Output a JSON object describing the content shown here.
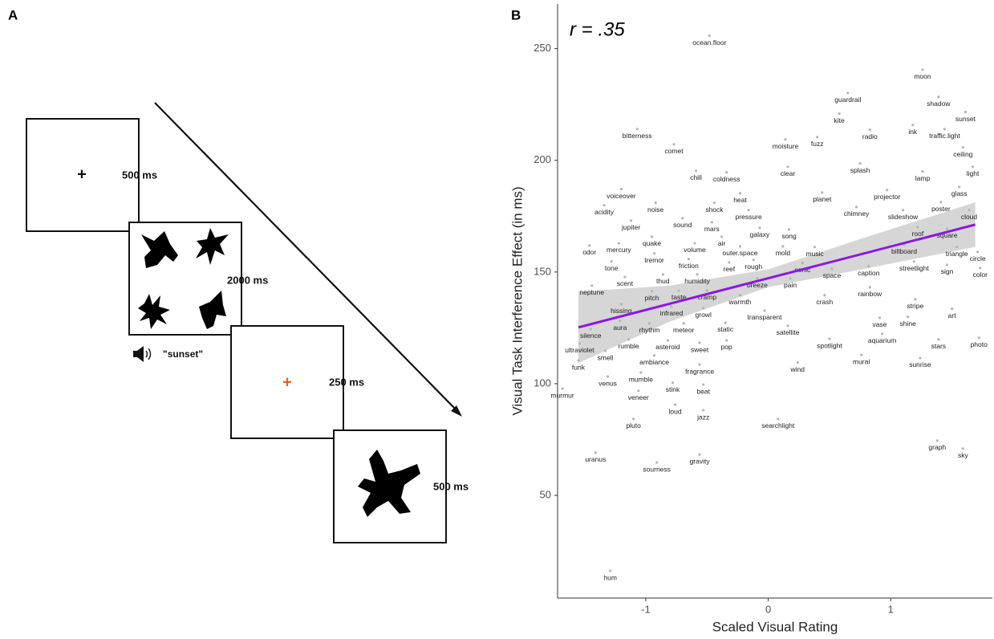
{
  "panel_a": {
    "label": "A",
    "frames": [
      {
        "fixation": "+",
        "duration": "500 ms"
      },
      {
        "duration": "2000 ms",
        "audio": "\"sunset\""
      },
      {
        "fixation": "+",
        "duration": "250 ms"
      },
      {
        "duration": "500 ms"
      }
    ]
  },
  "chart_data": {
    "type": "scatter",
    "label": "B",
    "annotation": "r = .35",
    "x_label": "Scaled Visual Rating",
    "y_label": "Visual Task Interference Effect (in ms)",
    "xlim": [
      -1.72,
      1.83
    ],
    "ylim": [
      4,
      270
    ],
    "xticks": [
      -1,
      0,
      1
    ],
    "yticks": [
      50,
      100,
      150,
      200,
      250
    ],
    "point_color": "#b5b5b5",
    "fit_color": "#8a18e0",
    "ci_color": "#cfcfcf",
    "point_labels": [
      "ocean.floor",
      "moon",
      "guardrail",
      "shadow",
      "kite",
      "sunset",
      "bitterness",
      "fuzz",
      "radio",
      "ink",
      "traffic.light",
      "moisture",
      "ceiling",
      "comet",
      "splash",
      "clear",
      "chill",
      "coldness",
      "lamp",
      "light",
      "glass",
      "voiceover",
      "planet",
      "projector",
      "heat",
      "acidity",
      "noise",
      "shock",
      "chimney",
      "poster",
      "slideshow",
      "cloud",
      "pressure",
      "jupiter",
      "sound",
      "mars",
      "roof",
      "square",
      "galaxy",
      "song",
      "quake",
      "air",
      "billboard",
      "circle",
      "odor",
      "mercury",
      "volume",
      "outer.space",
      "mold",
      "music",
      "triangle",
      "tremor",
      "tone",
      "friction",
      "rough",
      "streetlight",
      "reef",
      "sonic",
      "caption",
      "sign",
      "color",
      "space",
      "scent",
      "thud",
      "humidity",
      "breeze",
      "pain",
      "neptune",
      "rainbow",
      "pitch",
      "taste",
      "cramp",
      "warmth",
      "crash",
      "infrared",
      "stripe",
      "hissing",
      "growl",
      "transparent",
      "art",
      "vase",
      "shine",
      "aura",
      "rhythm",
      "meteor",
      "static",
      "satellite",
      "silence",
      "aquarium",
      "photo",
      "rumble",
      "asteroid",
      "sweet",
      "pop",
      "spotlight",
      "stars",
      "ultraviolet",
      "smell",
      "ambiance",
      "mural",
      "sunrise",
      "funk",
      "wind",
      "fragrance",
      "venus",
      "mumble",
      "stink",
      "beat",
      "murmur",
      "veneer",
      "loud",
      "jazz",
      "searchlight",
      "pluto",
      "graph",
      "sky",
      "uranus",
      "gravity",
      "sourness",
      "hum"
    ],
    "x": [
      -0.48,
      1.26,
      0.65,
      1.39,
      0.58,
      1.61,
      -1.07,
      0.4,
      0.83,
      1.18,
      1.44,
      0.14,
      1.59,
      -0.77,
      0.75,
      0.16,
      -0.59,
      -0.34,
      1.26,
      1.67,
      1.56,
      -1.2,
      0.44,
      0.97,
      -0.23,
      -1.34,
      -0.92,
      -0.44,
      0.72,
      1.41,
      1.1,
      1.64,
      -0.16,
      -1.12,
      -0.7,
      -0.46,
      1.22,
      1.46,
      -0.07,
      0.17,
      -0.95,
      -0.38,
      1.11,
      1.71,
      -1.46,
      -1.22,
      -0.6,
      -0.23,
      0.12,
      0.38,
      1.54,
      -0.93,
      -1.28,
      -0.65,
      -0.12,
      1.19,
      -0.32,
      0.28,
      0.82,
      1.46,
      1.73,
      0.52,
      -1.17,
      -0.86,
      -0.58,
      -0.09,
      0.18,
      -1.44,
      0.83,
      -0.95,
      -0.73,
      -0.5,
      -0.23,
      0.46,
      -0.79,
      1.2,
      -1.2,
      -0.53,
      -0.03,
      1.5,
      0.91,
      1.14,
      -1.21,
      -0.97,
      -0.69,
      -0.35,
      0.16,
      -1.45,
      0.93,
      1.72,
      -1.14,
      -0.82,
      -0.56,
      -0.34,
      0.5,
      1.39,
      -1.54,
      -1.33,
      -0.93,
      0.76,
      1.24,
      -1.55,
      0.24,
      -0.56,
      -1.31,
      -1.04,
      -0.78,
      -0.53,
      -1.68,
      -1.06,
      -0.76,
      -0.53,
      0.08,
      -1.1,
      1.38,
      1.59,
      -1.41,
      -0.56,
      -0.91,
      -1.29
    ],
    "values": [
      255.8,
      240.6,
      230.2,
      228.4,
      220.9,
      221.6,
      214.0,
      210.4,
      213.7,
      215.8,
      214.0,
      209.4,
      205.8,
      207.2,
      198.6,
      197.1,
      195.3,
      194.6,
      195.0,
      197.1,
      188.1,
      187.1,
      185.6,
      186.7,
      185.3,
      179.9,
      181.0,
      181.0,
      179.1,
      181.3,
      177.7,
      177.7,
      177.7,
      173.0,
      174.1,
      172.3,
      170.1,
      169.4,
      169.8,
      169.1,
      165.8,
      165.8,
      162.2,
      159.0,
      161.9,
      162.9,
      162.9,
      161.5,
      161.5,
      161.2,
      161.2,
      158.3,
      154.7,
      155.8,
      155.4,
      154.7,
      154.3,
      154.0,
      152.5,
      153.2,
      151.8,
      151.4,
      147.8,
      148.9,
      148.9,
      147.1,
      147.1,
      143.9,
      143.2,
      141.4,
      141.7,
      141.7,
      139.6,
      139.6,
      134.5,
      137.8,
      135.6,
      133.8,
      132.7,
      133.5,
      129.5,
      129.9,
      128.1,
      127.0,
      127.0,
      127.3,
      125.9,
      124.5,
      122.3,
      120.5,
      119.8,
      119.4,
      118.3,
      119.4,
      120.1,
      119.8,
      118.0,
      114.7,
      112.6,
      112.9,
      111.5,
      110.4,
      109.4,
      108.6,
      103.2,
      105.0,
      100.4,
      99.6,
      97.8,
      96.8,
      90.6,
      88.1,
      84.2,
      84.2,
      74.5,
      70.9,
      69.1,
      68.3,
      64.7,
      16.2
    ],
    "fit": {
      "x": [
        -1.55,
        1.69
      ],
      "y": [
        125.2,
        171.2
      ]
    },
    "ci": {
      "x": [
        -1.55,
        -0.8,
        0,
        0.8,
        1.69
      ],
      "lower": [
        109.2,
        127.9,
        143.2,
        151.6,
        161.2
      ],
      "upper": [
        141.2,
        143.9,
        151.2,
        165.6,
        181.2
      ]
    }
  }
}
